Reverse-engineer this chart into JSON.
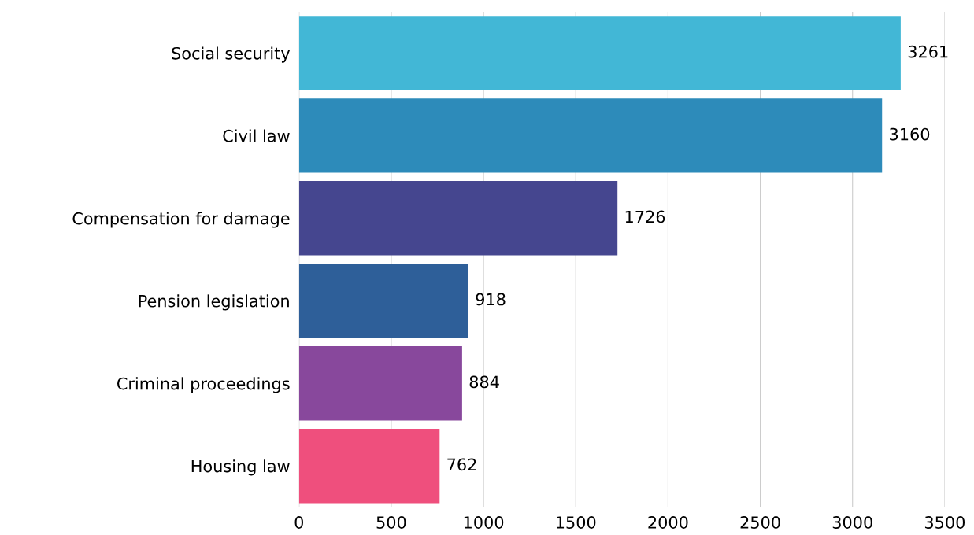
{
  "chart_data": {
    "type": "bar",
    "orientation": "horizontal",
    "categories": [
      "Social security",
      "Civil law",
      "Compensation for damage",
      "Pension legislation",
      "Criminal proceedings",
      "Housing law"
    ],
    "values": [
      3261,
      3160,
      1726,
      918,
      884,
      762
    ],
    "colors": [
      "#42b7d6",
      "#2d8bba",
      "#45468f",
      "#2e5f99",
      "#88489c",
      "#ef4f7d"
    ],
    "xlim": [
      0,
      3500
    ],
    "xticks": [
      0,
      500,
      1000,
      1500,
      2000,
      2500,
      3000,
      3500
    ],
    "grid": "x",
    "data_labels": true
  }
}
